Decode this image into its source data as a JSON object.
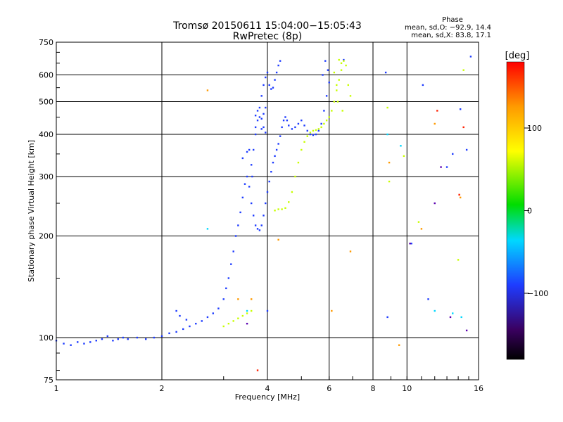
{
  "chart_data": {
    "type": "scatter",
    "title": "Tromsø 20150611 15:04:00−15:05:43",
    "subtitle": "RwPretec (8p)",
    "xlabel": "Frequency [MHz]",
    "ylabel": "Stationary phase Virtual Height [km]",
    "x_scale": "log",
    "y_scale": "log",
    "xlim": [
      1,
      16
    ],
    "ylim": [
      75,
      750
    ],
    "x_ticks": [
      1,
      2,
      4,
      6,
      8,
      10,
      16
    ],
    "x_tick_labels": [
      "1",
      "2",
      "4",
      "6",
      "8",
      "10",
      "16"
    ],
    "y_ticks": [
      75,
      100,
      200,
      300,
      400,
      500,
      600,
      750
    ],
    "y_tick_labels": [
      "75",
      "100",
      "200",
      "300",
      "400",
      "500",
      "600",
      "750"
    ],
    "grid": true,
    "phase_stats": {
      "title": "Phase",
      "o_label": "mean, sd,O: −92.9, 14.4",
      "x_label": "mean, sd,X:  83.8, 17.1"
    },
    "colorbar": {
      "label": "[deg]",
      "range": [
        -180,
        180
      ],
      "tick_values": [
        100,
        0,
        -100
      ],
      "tick_labels": [
        "100",
        "0",
        "−100"
      ]
    },
    "series": [
      {
        "trace": "blue",
        "phase": -100,
        "color": "#1e3cff",
        "points": [
          [
            1.0,
            98
          ],
          [
            1.05,
            96
          ],
          [
            1.1,
            95
          ],
          [
            1.15,
            97
          ],
          [
            1.2,
            96
          ],
          [
            1.25,
            97
          ],
          [
            1.3,
            98
          ],
          [
            1.35,
            99
          ],
          [
            1.4,
            101
          ],
          [
            1.45,
            98
          ],
          [
            1.5,
            99
          ],
          [
            1.55,
            100
          ],
          [
            1.6,
            99
          ],
          [
            1.7,
            100
          ],
          [
            1.8,
            99
          ],
          [
            1.9,
            100
          ],
          [
            2.0,
            101
          ],
          [
            2.1,
            103
          ],
          [
            2.2,
            104
          ],
          [
            2.3,
            106
          ],
          [
            2.4,
            108
          ],
          [
            2.5,
            110
          ],
          [
            2.6,
            112
          ],
          [
            2.7,
            115
          ],
          [
            2.8,
            118
          ],
          [
            2.9,
            122
          ],
          [
            3.0,
            130
          ],
          [
            3.05,
            140
          ],
          [
            3.1,
            150
          ],
          [
            3.15,
            165
          ],
          [
            3.2,
            180
          ],
          [
            3.25,
            200
          ],
          [
            3.3,
            215
          ],
          [
            3.35,
            235
          ],
          [
            3.4,
            260
          ],
          [
            3.45,
            285
          ],
          [
            3.5,
            300
          ],
          [
            3.55,
            280
          ],
          [
            3.6,
            250
          ],
          [
            3.65,
            230
          ],
          [
            3.7,
            215
          ],
          [
            3.75,
            210
          ],
          [
            3.8,
            208
          ],
          [
            3.85,
            215
          ],
          [
            3.9,
            230
          ],
          [
            3.95,
            250
          ],
          [
            4.0,
            270
          ],
          [
            4.05,
            290
          ],
          [
            4.1,
            310
          ],
          [
            4.15,
            330
          ],
          [
            4.2,
            345
          ],
          [
            4.25,
            360
          ],
          [
            4.3,
            375
          ],
          [
            4.35,
            395
          ],
          [
            4.4,
            420
          ],
          [
            4.45,
            440
          ],
          [
            4.5,
            450
          ],
          [
            4.55,
            440
          ],
          [
            4.6,
            425
          ],
          [
            4.7,
            415
          ],
          [
            4.8,
            420
          ],
          [
            4.9,
            430
          ],
          [
            5.0,
            440
          ],
          [
            5.1,
            425
          ],
          [
            5.2,
            410
          ],
          [
            5.3,
            400
          ],
          [
            5.4,
            398
          ],
          [
            5.5,
            400
          ],
          [
            5.6,
            410
          ],
          [
            5.7,
            430
          ],
          [
            5.8,
            470
          ],
          [
            5.9,
            520
          ],
          [
            6.0,
            570
          ],
          [
            5.95,
            620
          ],
          [
            5.85,
            660
          ],
          [
            5.75,
            600
          ],
          [
            3.4,
            340
          ],
          [
            3.5,
            355
          ],
          [
            3.55,
            360
          ],
          [
            3.6,
            325
          ],
          [
            3.62,
            300
          ],
          [
            3.65,
            360
          ],
          [
            3.7,
            400
          ],
          [
            3.75,
            440
          ],
          [
            3.8,
            480
          ],
          [
            3.85,
            520
          ],
          [
            3.9,
            560
          ],
          [
            3.95,
            590
          ],
          [
            4.0,
            610
          ],
          [
            4.05,
            560
          ],
          [
            4.1,
            545
          ],
          [
            4.15,
            550
          ],
          [
            4.2,
            580
          ],
          [
            4.25,
            610
          ],
          [
            4.3,
            640
          ],
          [
            4.35,
            660
          ],
          [
            3.75,
            470
          ],
          [
            3.8,
            450
          ],
          [
            3.85,
            445
          ],
          [
            3.9,
            460
          ],
          [
            3.95,
            480
          ],
          [
            3.85,
            415
          ],
          [
            3.9,
            420
          ],
          [
            3.95,
            405
          ],
          [
            3.7,
            455
          ],
          [
            3.7,
            420
          ],
          [
            2.2,
            120
          ],
          [
            2.25,
            116
          ],
          [
            2.35,
            113
          ],
          [
            4.0,
            120
          ],
          [
            6.6,
            665
          ],
          [
            8.7,
            610
          ],
          [
            10.3,
            190
          ],
          [
            11.5,
            130
          ],
          [
            13.0,
            320
          ],
          [
            13.5,
            350
          ],
          [
            14.8,
            360
          ],
          [
            15.2,
            680
          ],
          [
            14.2,
            475
          ],
          [
            8.8,
            115
          ],
          [
            11.1,
            560
          ]
        ]
      },
      {
        "trace": "yellow",
        "phase": 100,
        "color": "#c8ff00",
        "points": [
          [
            3.0,
            108
          ],
          [
            3.1,
            110
          ],
          [
            3.2,
            112
          ],
          [
            3.3,
            114
          ],
          [
            3.4,
            116
          ],
          [
            3.5,
            118
          ],
          [
            3.6,
            120
          ],
          [
            4.2,
            238
          ],
          [
            4.3,
            240
          ],
          [
            4.4,
            240
          ],
          [
            4.5,
            242
          ],
          [
            4.6,
            252
          ],
          [
            4.7,
            270
          ],
          [
            4.8,
            300
          ],
          [
            4.9,
            330
          ],
          [
            5.0,
            360
          ],
          [
            5.1,
            380
          ],
          [
            5.2,
            395
          ],
          [
            5.3,
            405
          ],
          [
            5.4,
            410
          ],
          [
            5.5,
            412
          ],
          [
            5.6,
            415
          ],
          [
            5.7,
            420
          ],
          [
            5.8,
            430
          ],
          [
            5.9,
            440
          ],
          [
            6.0,
            450
          ],
          [
            6.1,
            470
          ],
          [
            6.2,
            500
          ],
          [
            6.3,
            540
          ],
          [
            6.4,
            580
          ],
          [
            6.5,
            620
          ],
          [
            6.6,
            660
          ],
          [
            6.7,
            640
          ],
          [
            6.8,
            560
          ],
          [
            6.9,
            520
          ],
          [
            6.4,
            665
          ],
          [
            6.5,
            650
          ],
          [
            6.2,
            610
          ],
          [
            6.3,
            560
          ],
          [
            6.35,
            500
          ],
          [
            6.55,
            470
          ],
          [
            8.8,
            480
          ],
          [
            8.9,
            290
          ],
          [
            10.8,
            220
          ],
          [
            14.0,
            170
          ],
          [
            14.5,
            620
          ],
          [
            9.8,
            345
          ]
        ]
      },
      {
        "trace": "orange",
        "phase": 140,
        "color": "#ff9a00",
        "points": [
          [
            2.7,
            540
          ],
          [
            3.3,
            130
          ],
          [
            3.6,
            130
          ],
          [
            4.3,
            195
          ],
          [
            6.1,
            120
          ],
          [
            6.9,
            180
          ],
          [
            8.9,
            330
          ],
          [
            9.5,
            95
          ],
          [
            11.0,
            210
          ],
          [
            12.0,
            430
          ],
          [
            14.2,
            260
          ]
        ]
      },
      {
        "trace": "red",
        "phase": 170,
        "color": "#ff2000",
        "points": [
          [
            3.75,
            80
          ],
          [
            14.5,
            420
          ],
          [
            12.2,
            470
          ],
          [
            14.1,
            265
          ]
        ]
      },
      {
        "trace": "cyan",
        "phase": -20,
        "color": "#00d8ff",
        "points": [
          [
            2.7,
            210
          ],
          [
            3.5,
            120
          ],
          [
            8.8,
            400
          ],
          [
            9.6,
            370
          ],
          [
            12.0,
            120
          ],
          [
            14.3,
            115
          ],
          [
            13.5,
            118
          ]
        ]
      },
      {
        "trace": "violet",
        "phase": -150,
        "color": "#5a00b0",
        "points": [
          [
            3.5,
            110
          ],
          [
            10.2,
            190
          ],
          [
            12.5,
            320
          ],
          [
            13.3,
            115
          ],
          [
            14.8,
            105
          ],
          [
            12.0,
            250
          ]
        ]
      }
    ]
  }
}
